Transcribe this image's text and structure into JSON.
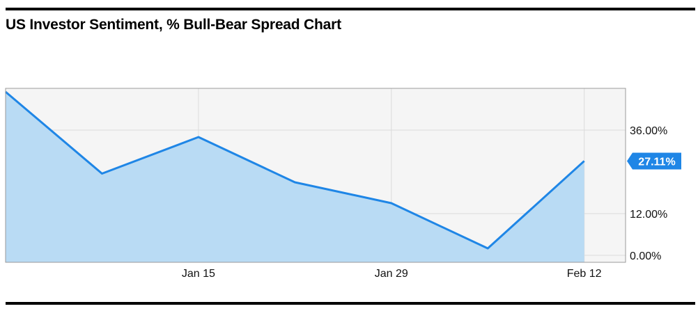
{
  "page": {
    "title": "US Investor Sentiment, % Bull-Bear Spread Chart"
  },
  "chart_data": {
    "type": "area",
    "title": "US Investor Sentiment, % Bull-Bear Spread Chart",
    "xlabel": "",
    "ylabel": "",
    "x": [
      "2015-01-01",
      "2015-01-08",
      "2015-01-15",
      "2015-01-22",
      "2015-01-29",
      "2015-02-05",
      "2015-02-12"
    ],
    "values": [
      47.0,
      23.5,
      34.0,
      21.0,
      15.0,
      2.0,
      27.11
    ],
    "x_ticks": [
      {
        "date": "2015-01-15",
        "label": "Jan 15"
      },
      {
        "date": "2015-01-29",
        "label": "Jan 29"
      },
      {
        "date": "2015-02-12",
        "label": "Feb 12"
      }
    ],
    "y_ticks": [
      {
        "value": 0,
        "label": "0.00%"
      },
      {
        "value": 12,
        "label": "12.00%"
      },
      {
        "value": 36,
        "label": "36.00%"
      }
    ],
    "ylim": [
      -2,
      48
    ],
    "grid": true,
    "last_value_label": "27.11%",
    "colors": {
      "line": "#1f86e6",
      "fill": "#b9dbf4",
      "plot_background": "#f5f5f5",
      "grid": "#dcdcdc",
      "badge": "#1f86e6",
      "badge_text": "#ffffff"
    }
  }
}
